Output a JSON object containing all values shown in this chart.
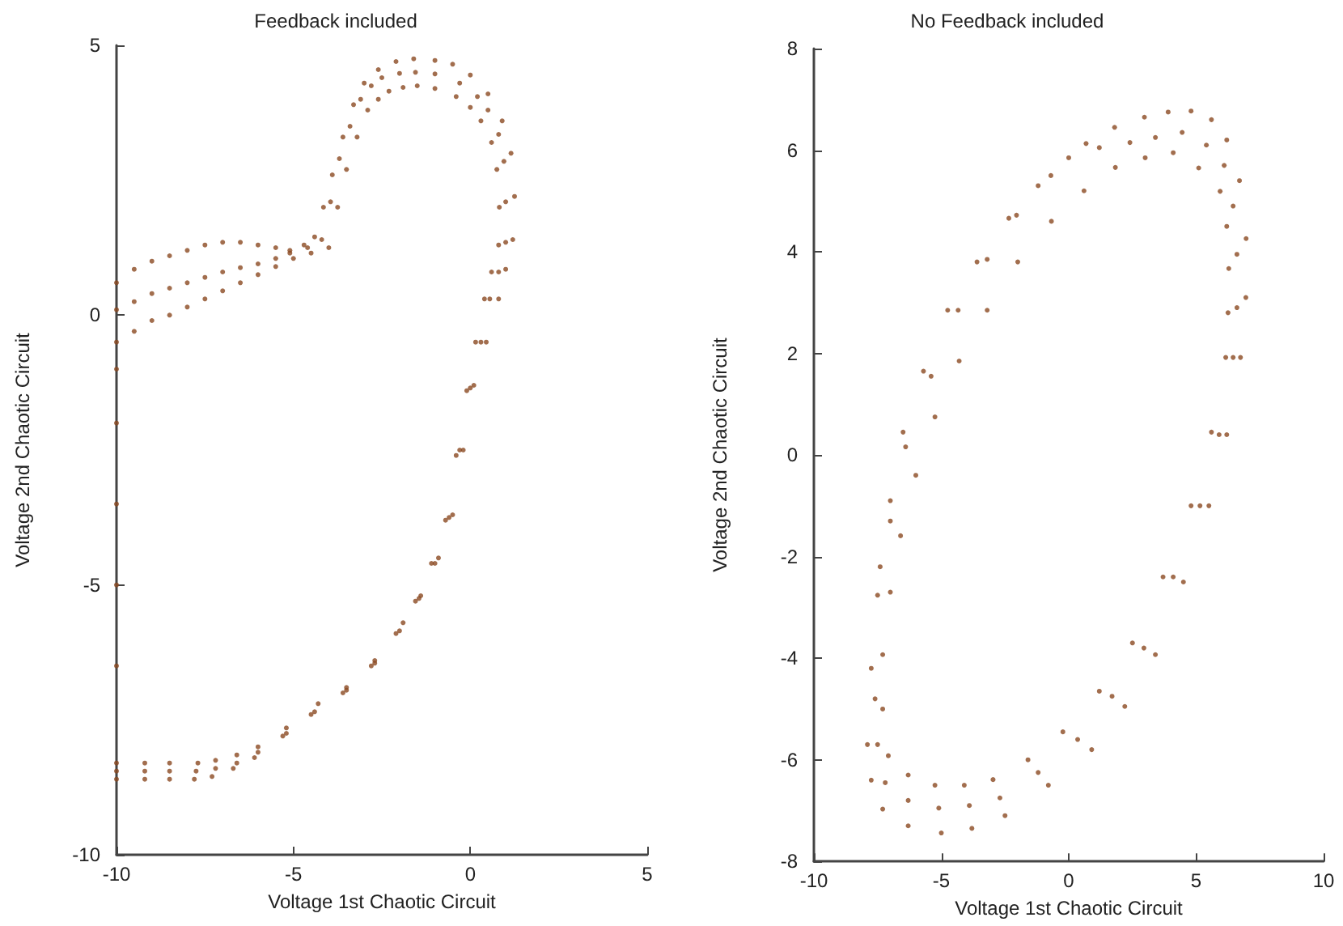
{
  "chart_data": [
    {
      "type": "scatter",
      "title": "Feedback included",
      "xlabel": "Voltage 1st Chaotic Circuit",
      "ylabel": "Voltage 2nd Chaotic Circuit",
      "xlim": [
        -10,
        5
      ],
      "ylim": [
        -10,
        5
      ],
      "xticks": [
        -10,
        -5,
        0,
        5
      ],
      "yticks": [
        -10,
        -5,
        0,
        5
      ],
      "grid": false,
      "marker": "circle",
      "series": [
        {
          "color": "#8b4a22",
          "x": [
            -10,
            -9.5,
            -9,
            -8.5,
            -8,
            -7.5,
            -7,
            -6.5,
            -6,
            -5.5,
            -5.1,
            -4.7,
            -4.4,
            -4.15,
            -3.9,
            -3.6,
            -3.3,
            -3,
            -2.6,
            -2.1,
            -1.6,
            -1,
            -0.5,
            0,
            0.5,
            0.9,
            1.15,
            1.25,
            1.2,
            1,
            0.8,
            0.45,
            0.1,
            -0.2,
            -0.5,
            -0.9,
            -1.4,
            -1.9,
            -2.7,
            -3.5,
            -4.3,
            -5.2,
            -6,
            -6.6,
            -7.2,
            -7.7,
            -8.5,
            -9.2,
            -10,
            -10,
            -10,
            -10,
            -10,
            -10
          ],
          "values": [
            0.6,
            0.85,
            1,
            1.1,
            1.2,
            1.3,
            1.35,
            1.35,
            1.3,
            1.25,
            1.2,
            1.3,
            1.45,
            2,
            2.6,
            3.3,
            3.9,
            4.3,
            4.55,
            4.7,
            4.75,
            4.72,
            4.65,
            4.45,
            4.1,
            3.6,
            3,
            2.2,
            1.4,
            0.85,
            0.3,
            -0.5,
            -1.3,
            -2.5,
            -3.7,
            -4.5,
            -5.2,
            -5.7,
            -6.4,
            -6.9,
            -7.2,
            -7.65,
            -8,
            -8.15,
            -8.25,
            -8.3,
            -8.3,
            -8.3,
            -8.3,
            -6.5,
            -5,
            -3.5,
            -2,
            -1
          ]
        },
        {
          "color": "#8b4a22",
          "x": [
            -10,
            -9.5,
            -9,
            -8.5,
            -8,
            -7.5,
            -7,
            -6.5,
            -6,
            -5.5,
            -5.1,
            -4.6,
            -4.2,
            -3.95,
            -3.7,
            -3.4,
            -3.1,
            -2.8,
            -2.5,
            -2,
            -1.55,
            -1,
            -0.3,
            0.2,
            0.5,
            0.8,
            0.95,
            1,
            1,
            0.8,
            0.55,
            0.3,
            0,
            -0.3,
            -0.6,
            -1,
            -1.45,
            -2,
            -2.7,
            -3.5,
            -4.4,
            -5.2,
            -6,
            -6.6,
            -7.2,
            -7.75,
            -8.5,
            -9.2,
            -10
          ],
          "values": [
            0.1,
            0.25,
            0.4,
            0.5,
            0.6,
            0.7,
            0.8,
            0.88,
            0.95,
            1.05,
            1.15,
            1.25,
            1.4,
            2.1,
            2.9,
            3.5,
            4,
            4.25,
            4.4,
            4.48,
            4.5,
            4.47,
            4.3,
            4.05,
            3.8,
            3.35,
            2.85,
            2.1,
            1.35,
            0.8,
            0.3,
            -0.5,
            -1.35,
            -2.5,
            -3.75,
            -4.6,
            -5.25,
            -5.85,
            -6.45,
            -6.95,
            -7.35,
            -7.75,
            -8.1,
            -8.3,
            -8.4,
            -8.45,
            -8.45,
            -8.45,
            -8.45
          ]
        },
        {
          "color": "#8b4a22",
          "x": [
            -10,
            -9.5,
            -9,
            -8.5,
            -8,
            -7.5,
            -7,
            -6.5,
            -6,
            -5.5,
            -5,
            -4.5,
            -4,
            -3.75,
            -3.5,
            -3.2,
            -2.9,
            -2.6,
            -2.3,
            -1.9,
            -1.5,
            -1,
            -0.4,
            0,
            0.3,
            0.6,
            0.75,
            0.82,
            0.8,
            0.6,
            0.4,
            0.15,
            -0.1,
            -0.4,
            -0.7,
            -1.1,
            -1.55,
            -2.1,
            -2.8,
            -3.6,
            -4.5,
            -5.3,
            -6.1,
            -6.7,
            -7.3,
            -7.8,
            -8.5,
            -9.2,
            -10
          ],
          "values": [
            -0.5,
            -0.3,
            -0.1,
            0,
            0.15,
            0.3,
            0.45,
            0.6,
            0.75,
            0.9,
            1.05,
            1.15,
            1.25,
            2,
            2.7,
            3.3,
            3.8,
            4,
            4.15,
            4.22,
            4.25,
            4.2,
            4.05,
            3.85,
            3.6,
            3.2,
            2.7,
            2,
            1.3,
            0.8,
            0.3,
            -0.5,
            -1.4,
            -2.6,
            -3.8,
            -4.6,
            -5.3,
            -5.9,
            -6.5,
            -7,
            -7.4,
            -7.8,
            -8.2,
            -8.4,
            -8.55,
            -8.6,
            -8.6,
            -8.6,
            -8.6
          ]
        }
      ]
    },
    {
      "type": "scatter",
      "title": "No Feedback included",
      "xlabel": "Voltage 1st Chaotic Circuit",
      "ylabel": "Voltage 2nd Chaotic Circuit",
      "xlim": [
        -10,
        10
      ],
      "ylim": [
        -8,
        8
      ],
      "xticks": [
        -10,
        -5,
        0,
        5,
        10
      ],
      "yticks": [
        -8,
        -6,
        -4,
        -2,
        0,
        2,
        4,
        6,
        8
      ],
      "grid": false,
      "marker": "circle",
      "series": [
        {
          "color": "#8b4a22",
          "x": [
            -7.9,
            -7.75,
            -7.5,
            -7,
            -6.4,
            -5.4,
            -4.34,
            -3.2,
            -2.05,
            -0.7,
            0.68,
            1.8,
            2.97,
            3.9,
            4.8,
            5.6,
            6.2,
            6.7,
            6.96,
            6.95,
            6.74,
            6.2,
            5.5,
            4.5,
            3.4,
            2.2,
            0.9,
            -0.8,
            -2.5,
            -3.8,
            -5,
            -6.3,
            -7.3,
            -7.75
          ],
          "values": [
            -5.7,
            -4.2,
            -2.76,
            -1.3,
            0.16,
            1.55,
            2.85,
            3.85,
            4.72,
            5.5,
            6.13,
            6.45,
            6.65,
            6.75,
            6.77,
            6.6,
            6.2,
            5.4,
            4.26,
            3.1,
            1.92,
            0.4,
            -1,
            -2.5,
            -3.93,
            -4.95,
            -5.8,
            -6.5,
            -7.1,
            -7.35,
            -7.44,
            -7.3,
            -6.97,
            -6.4
          ]
        },
        {
          "color": "#8b4a22",
          "x": [
            -7.6,
            -7.4,
            -7,
            -6.5,
            -5.7,
            -4.75,
            -3.6,
            -2.35,
            -1.2,
            0,
            1.2,
            2.4,
            3.4,
            4.45,
            5.4,
            6.1,
            6.45,
            6.6,
            6.6,
            6.45,
            5.9,
            5.15,
            4.1,
            2.95,
            1.7,
            0.35,
            -1.2,
            -2.7,
            -3.9,
            -5.1,
            -6.3,
            -7.2,
            -7.5
          ],
          "values": [
            -4.8,
            -2.2,
            -0.9,
            0.45,
            1.65,
            2.85,
            3.8,
            4.66,
            5.3,
            5.85,
            6.05,
            6.15,
            6.25,
            6.35,
            6.1,
            5.7,
            4.9,
            3.95,
            2.9,
            1.92,
            0.4,
            -1,
            -2.4,
            -3.8,
            -4.75,
            -5.6,
            -6.25,
            -6.75,
            -6.9,
            -6.95,
            -6.8,
            -6.45,
            -5.7
          ]
        },
        {
          "color": "#8b4a22",
          "x": [
            -7.3,
            -7,
            -6.6,
            -6,
            -5.25,
            -4.3,
            -3.2,
            -2,
            -0.68,
            0.6,
            1.83,
            3,
            4.1,
            5.1,
            5.94,
            6.2,
            6.28,
            6.25,
            6.16,
            5.6,
            4.8,
            3.7,
            2.5,
            1.2,
            -0.23,
            -1.6,
            -2.97,
            -4.1,
            -5.25,
            -6.3,
            -7.08,
            -7.3
          ],
          "values": [
            -3.93,
            -2.7,
            -1.59,
            -0.4,
            0.75,
            1.85,
            2.85,
            3.8,
            4.6,
            5.2,
            5.66,
            5.85,
            5.95,
            5.65,
            5.19,
            4.5,
            3.67,
            2.8,
            1.92,
            0.45,
            -1,
            -2.4,
            -3.7,
            -4.65,
            -5.45,
            -6,
            -6.39,
            -6.5,
            -6.5,
            -6.3,
            -5.92,
            -5
          ]
        }
      ]
    }
  ]
}
